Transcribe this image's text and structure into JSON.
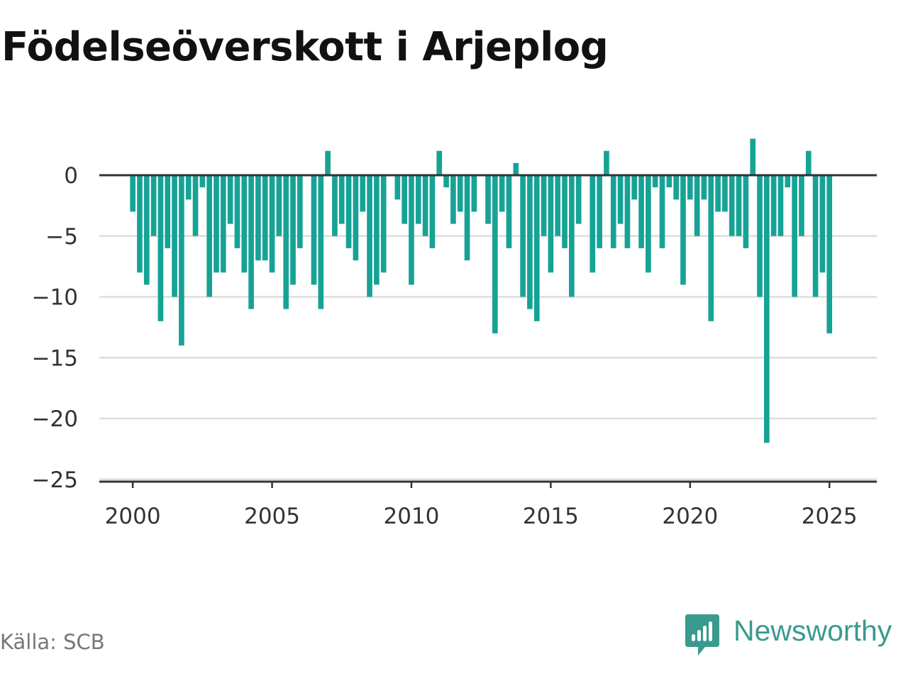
{
  "title": "Födelseöverskott i Arjeplog",
  "source": "Källa: SCB",
  "brand": {
    "name": "Newsworthy",
    "icon": "newsworthy-logo-icon",
    "color": "#3a9a8f"
  },
  "colors": {
    "bar": "#16a396",
    "zero_line": "#333333",
    "grid": "#dddddd",
    "axis": "#333333"
  },
  "chart_data": {
    "type": "bar",
    "title": "Födelseöverskott i Arjeplog",
    "xlabel": "",
    "ylabel": "",
    "x_ticks": [
      2000,
      2005,
      2010,
      2015,
      2020,
      2025
    ],
    "y_ticks": [
      0,
      -5,
      -10,
      -15,
      -20,
      -25
    ],
    "y_tick_labels": [
      "0",
      "−5",
      "−10",
      "−15",
      "−20",
      "−25"
    ],
    "ylim": [
      -25,
      3
    ],
    "xlim": [
      1998.8,
      2026.7
    ],
    "grid": true,
    "periods_per_year": 4,
    "start": "2000 Q1",
    "series": [
      {
        "values": [
          -3,
          -8,
          -9,
          -5,
          -12,
          -6,
          -10,
          -14,
          -2,
          -5,
          -1,
          -10,
          -8,
          -8,
          -4,
          -6,
          -8,
          -11,
          -7,
          -7,
          -8,
          -5,
          -11,
          -9,
          -6,
          0,
          -9,
          -11,
          2,
          -5,
          -4,
          -6,
          -7,
          -3,
          -10,
          -9,
          -8,
          0,
          -2,
          -4,
          -9,
          -4,
          -5,
          -6,
          2,
          -1,
          -4,
          -3,
          -7,
          -3,
          0,
          -4,
          -13,
          -3,
          -6,
          1,
          -10,
          -11,
          -12,
          -5,
          -8,
          -5,
          -6,
          -10,
          -4,
          0,
          -8,
          -6,
          2,
          -6,
          -4,
          -6,
          -2,
          -6,
          -8,
          -1,
          -6,
          -1,
          -2,
          -9,
          -2,
          -5,
          -2,
          -12,
          -3,
          -3,
          -5,
          -5,
          -6,
          3,
          -10,
          -22,
          -5,
          -5,
          -1,
          -10,
          -5,
          2,
          -10,
          -8,
          -13
        ]
      }
    ]
  }
}
